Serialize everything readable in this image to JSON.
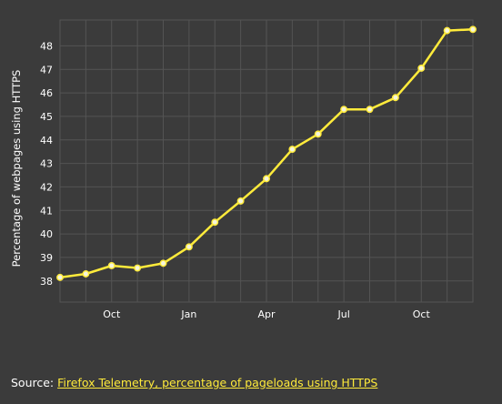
{
  "chart_data": {
    "type": "line",
    "title": "",
    "xlabel": "",
    "ylabel": "Percentage of webpages using HTTPS",
    "ylim": [
      37.1,
      49.1
    ],
    "yticks": [
      38,
      39,
      40,
      41,
      42,
      43,
      44,
      45,
      46,
      47,
      48
    ],
    "x_tick_labels": [
      "Oct",
      "Jan",
      "Apr",
      "Jul",
      "Oct"
    ],
    "x_tick_positions": [
      2,
      5,
      8,
      11,
      14
    ],
    "x_range": [
      0,
      16
    ],
    "x": [
      0,
      1,
      2,
      3,
      4,
      5,
      6,
      7,
      8,
      9,
      10,
      11,
      12,
      13,
      14,
      15,
      16
    ],
    "series": [
      {
        "values": [
          38.15,
          38.3,
          38.65,
          38.55,
          38.75,
          39.45,
          40.5,
          41.4,
          42.35,
          43.6,
          44.25,
          45.3,
          45.3,
          45.8,
          47.05,
          48.65,
          48.7
        ]
      }
    ],
    "grid": true,
    "colors": {
      "background": "#3b3b3b",
      "grid": "#545454",
      "line": "#ffeb3b",
      "marker_fill": "#f5f5dc"
    }
  },
  "source": {
    "prefix": "Source: ",
    "link_text": "Firefox Telemetry, percentage of pageloads using HTTPS"
  }
}
